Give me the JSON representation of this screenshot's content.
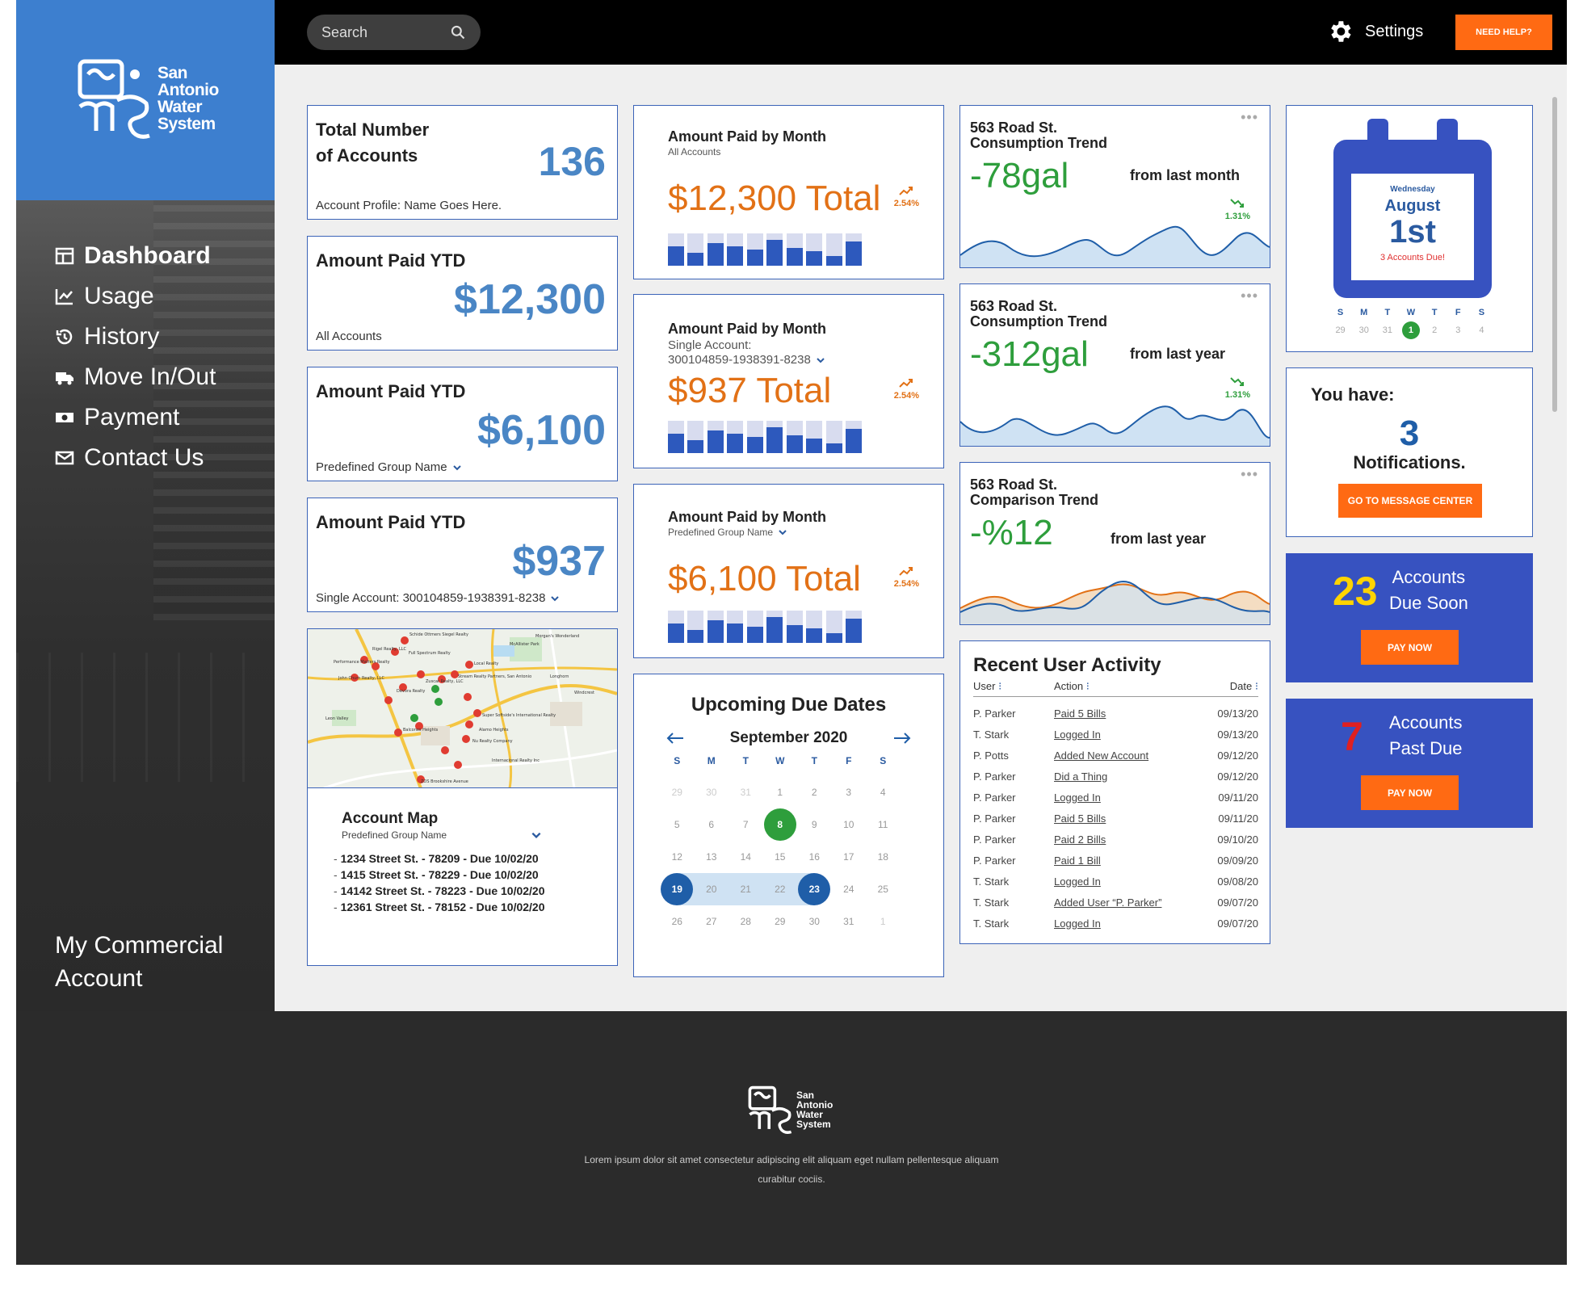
{
  "brand": {
    "name_lines": [
      "San",
      "Antonio",
      "Water",
      "System"
    ]
  },
  "sidebar": {
    "items": [
      {
        "label": "Dashboard",
        "icon": "dashboard-icon",
        "active": true
      },
      {
        "label": "Usage",
        "icon": "chart-icon"
      },
      {
        "label": "History",
        "icon": "history-icon"
      },
      {
        "label": "Move In/Out",
        "icon": "truck-icon"
      },
      {
        "label": "Payment",
        "icon": "money-icon"
      },
      {
        "label": "Contact Us",
        "icon": "envelope-icon"
      }
    ],
    "account_line1": "My Commercial",
    "account_line2": "Account"
  },
  "header": {
    "search_placeholder": "Search",
    "settings_label": "Settings",
    "help_label": "NEED HELP?"
  },
  "total_accounts": {
    "title_line1": "Total Number",
    "title_line2": "of Accounts",
    "value": "136",
    "sub": "Account Profile: Name Goes Here."
  },
  "ytd": [
    {
      "title": "Amount Paid YTD",
      "value": "$12,300",
      "sub": "All Accounts"
    },
    {
      "title": "Amount Paid YTD",
      "value": "$6,100",
      "sub": "Predefined Group Name"
    },
    {
      "title": "Amount Paid YTD",
      "value": "$937",
      "sub": "Single Account: 300104859-1938391-8238"
    }
  ],
  "paid_by_month": [
    {
      "title": "Amount Paid by Month",
      "sub": "All Accounts",
      "total": "$12,300 Total",
      "pct": "2.54%",
      "levels": [
        0.6,
        0.4,
        0.7,
        0.6,
        0.5,
        0.8,
        0.55,
        0.45,
        0.3,
        0.75
      ]
    },
    {
      "title": "Amount Paid by Month",
      "sub": "Single Account:",
      "sub2": "300104859-1938391-8238",
      "total": "$937 Total",
      "pct": "2.54%",
      "levels": [
        0.6,
        0.4,
        0.7,
        0.6,
        0.5,
        0.8,
        0.55,
        0.45,
        0.3,
        0.75
      ]
    },
    {
      "title": "Amount Paid by Month",
      "sub": "Predefined Group Name",
      "total": "$6,100 Total",
      "pct": "2.54%",
      "levels": [
        0.6,
        0.4,
        0.7,
        0.6,
        0.5,
        0.8,
        0.55,
        0.45,
        0.3,
        0.75
      ]
    }
  ],
  "trends": [
    {
      "title_line1": "563 Road St.",
      "title_line2": "Consumption Trend",
      "value": "-78gal",
      "from": "from last month",
      "pct": "1.31%"
    },
    {
      "title_line1": "563 Road St.",
      "title_line2": "Consumption Trend",
      "value": "-312gal",
      "from": "from last year",
      "pct": "1.31%"
    },
    {
      "title_line1": "563 Road St.",
      "title_line2": "Comparison Trend",
      "value": "-%12",
      "from": "from last year"
    }
  ],
  "map": {
    "title": "Account Map",
    "sub": "Predefined Group Name",
    "items": [
      "1234 Street St. - 78209 - Due 10/02/20",
      "1415 Street St. - 78229 - Due 10/02/20",
      "14142 Street St. - 78223 - Due 10/02/20",
      "12361 Street St. - 78152 - Due 10/02/20"
    ],
    "labels": [
      "Schide Ottmers Siegel Realty",
      "McAllister Park",
      "Morgan's Wonderland",
      "Rigel Realty, LLC",
      "Full Spectrum Realty",
      "Performance Matters Realty",
      "Local Realty",
      "Stream Realty Partners, San Antonio",
      "John Churn Realty, LLC",
      "Zuscar Realty, LLC",
      "Devora Realty",
      "Leon Valley",
      "Balcones Heights",
      "Super Softside's International Realty",
      "Alamo Heights",
      "Nu Realty Company",
      "Internacional Realty Inc",
      "ZOS Brookshire Avenue",
      "Longhorn",
      "Windcrest"
    ]
  },
  "due_dates": {
    "title": "Upcoming Due Dates",
    "month": "September 2020",
    "dows": [
      "S",
      "M",
      "T",
      "W",
      "T",
      "F",
      "S"
    ],
    "weeks": [
      [
        "29",
        "30",
        "31",
        "1",
        "2",
        "3",
        "4"
      ],
      [
        "5",
        "6",
        "7",
        "8",
        "9",
        "10",
        "11"
      ],
      [
        "12",
        "13",
        "14",
        "15",
        "16",
        "17",
        "18"
      ],
      [
        "19",
        "20",
        "21",
        "22",
        "23",
        "24",
        "25"
      ],
      [
        "26",
        "27",
        "28",
        "29",
        "30",
        "31",
        "1"
      ]
    ]
  },
  "activity": {
    "title": "Recent User Activity",
    "headers": [
      "User",
      "Action",
      "Date"
    ],
    "rows": [
      {
        "user": "P. Parker",
        "action": "Paid 5 Bills",
        "date": "09/13/20"
      },
      {
        "user": "T. Stark",
        "action": "Logged In",
        "date": "09/13/20"
      },
      {
        "user": "P. Potts",
        "action": "Added New Account",
        "date": "09/12/20"
      },
      {
        "user": "P. Parker",
        "action": "Did a Thing",
        "date": "09/12/20"
      },
      {
        "user": "P. Parker",
        "action": "Logged In",
        "date": "09/11/20"
      },
      {
        "user": "P. Parker",
        "action": "Paid 5 Bills",
        "date": "09/11/20"
      },
      {
        "user": "P. Parker",
        "action": "Paid 2 Bills",
        "date": "09/10/20"
      },
      {
        "user": "P. Parker",
        "action": "Paid 1 Bill",
        "date": "09/09/20"
      },
      {
        "user": "T. Stark",
        "action": "Logged In",
        "date": "09/08/20"
      },
      {
        "user": "T. Stark",
        "action": "Added User “P. Parker”",
        "date": "09/07/20"
      },
      {
        "user": "T. Stark",
        "action": "Logged In",
        "date": "09/07/20"
      }
    ]
  },
  "today": {
    "dow": "Wednesday",
    "month": "August",
    "day": "1st",
    "due": "3 Accounts Due!",
    "week_dows": [
      "S",
      "M",
      "T",
      "W",
      "T",
      "F",
      "S"
    ],
    "week_days": [
      "29",
      "30",
      "31",
      "1",
      "2",
      "3",
      "4"
    ]
  },
  "notifications": {
    "title": "You have:",
    "count": "3",
    "label": "Notifications.",
    "button": "GO TO MESSAGE CENTER"
  },
  "due_soon": {
    "count": "23",
    "line1": "Accounts",
    "line2": "Due Soon",
    "button": "PAY NOW",
    "count_color": "#ffd400"
  },
  "past_due": {
    "count": "7",
    "line1": "Accounts",
    "line2": "Past Due",
    "button": "PAY NOW",
    "count_color": "#e02020"
  },
  "footer": {
    "text": "Lorem ipsum dolor sit amet consectetur adipiscing elit aliquam eget nullam pellentesque aliquam curabitur cociis."
  },
  "colors": {
    "accent_orange": "#ff6a13",
    "brand_blue": "#3d7fcf",
    "card_border": "#3b63b8",
    "total_orange": "#e27116",
    "trend_green": "#2e9e3c"
  }
}
